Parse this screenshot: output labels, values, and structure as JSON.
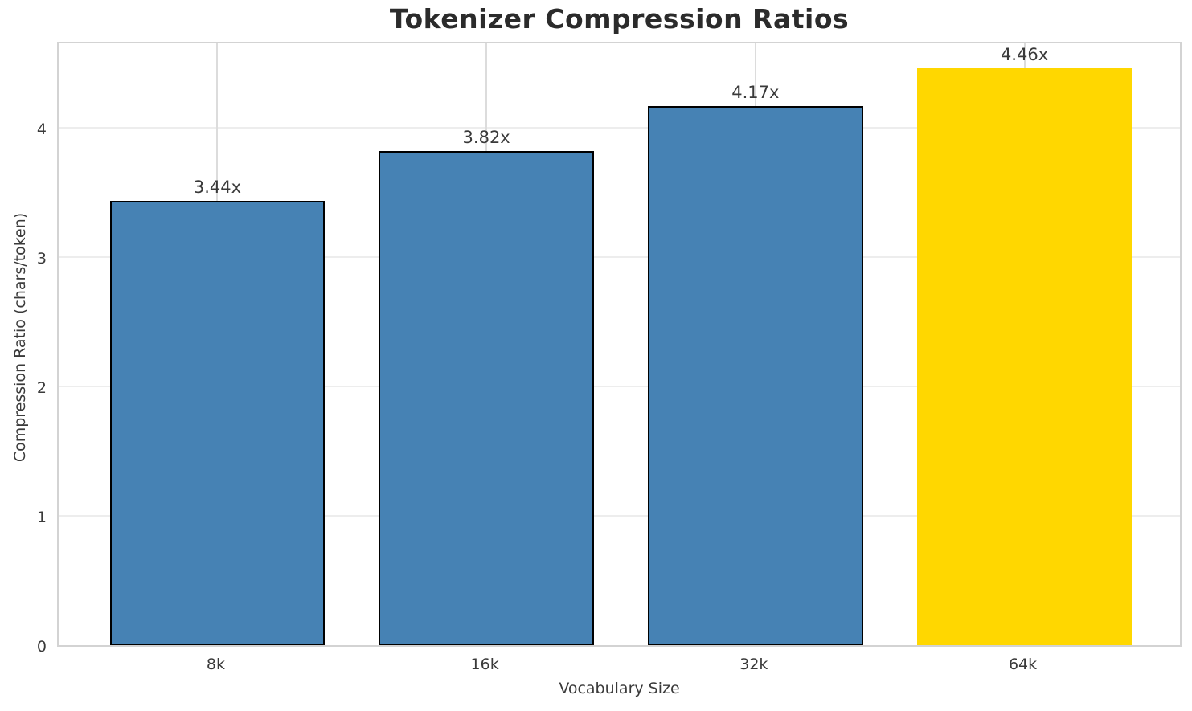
{
  "chart_data": {
    "type": "bar",
    "title": "Tokenizer Compression Ratios",
    "categories": [
      "8k",
      "16k",
      "32k",
      "64k"
    ],
    "values": [
      3.44,
      3.82,
      4.17,
      4.46
    ],
    "bar_labels": [
      "3.44x",
      "3.82x",
      "4.17x",
      "4.46x"
    ],
    "xlabel": "Vocabulary Size",
    "ylabel": "Compression Ratio (chars/token)",
    "yticks": [
      0,
      1,
      2,
      3,
      4
    ],
    "ylim": [
      0,
      4.68
    ],
    "x_range": [
      -0.59,
      3.59
    ],
    "bar_width": 0.8,
    "grid": true,
    "legend": "none",
    "highlight_index": 3,
    "colors": {
      "bar": "#4682b4",
      "highlight": "#ffd700",
      "bar_edge": "#000000",
      "grid_h": "#ededed",
      "grid_v": "#dcdcdc",
      "spine": "#d3d3d3",
      "text": "#3a3a3a"
    }
  }
}
